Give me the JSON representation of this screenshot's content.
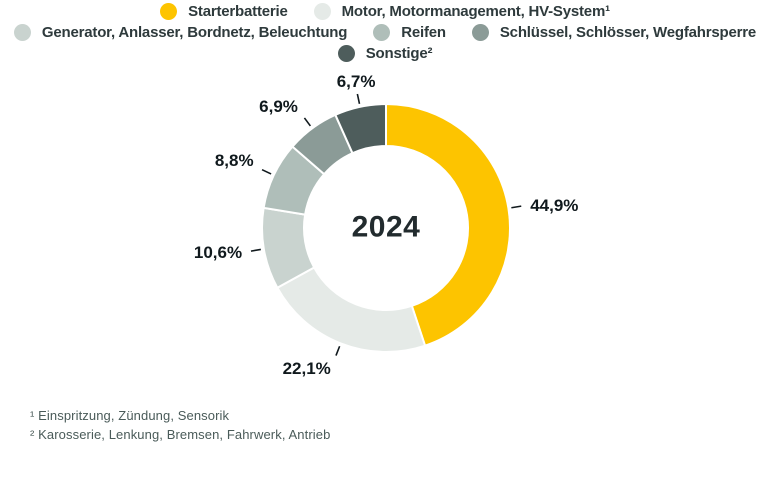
{
  "chart_data": {
    "type": "pie",
    "subtype": "donut",
    "center_label": "2024",
    "unit": "%",
    "direction": "clockwise",
    "start_angle_deg": 0,
    "legend_position": "top",
    "slices": [
      {
        "name": "Starterbatterie",
        "value": 44.9,
        "label": "44,9%",
        "color": "#FDC400"
      },
      {
        "name": "Motor, Motormanagement, HV-System¹",
        "value": 22.1,
        "label": "22,1%",
        "color": "#E5EAE7"
      },
      {
        "name": "Generator, Anlasser, Bordnetz, Beleuchtung",
        "value": 10.6,
        "label": "10,6%",
        "color": "#C9D3CF"
      },
      {
        "name": "Reifen",
        "value": 8.8,
        "label": "8,8%",
        "color": "#AFBEB9"
      },
      {
        "name": "Schlüssel, Schlösser, Wegfahrsperre",
        "value": 6.9,
        "label": "6,9%",
        "color": "#8B9B97"
      },
      {
        "name": "Sonstige²",
        "value": 6.7,
        "label": "6,7%",
        "color": "#4E5D5C"
      }
    ],
    "label_color": "#10191d",
    "separator_color": "#ffffff"
  },
  "footnotes": [
    "¹ Einspritzung, Zündung, Sensorik",
    "² Karosserie, Lenkung, Bremsen, Fahrwerk, Antrieb"
  ]
}
